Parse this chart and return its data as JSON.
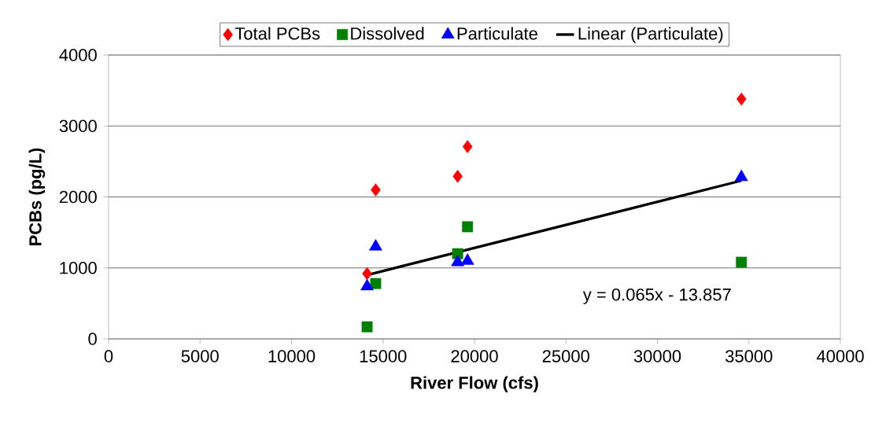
{
  "chart_data": {
    "type": "scatter",
    "xlabel": "River Flow (cfs)",
    "ylabel": "PCBs (pg/L)",
    "xlim": [
      0,
      40000
    ],
    "xticks": [
      0,
      5000,
      10000,
      15000,
      20000,
      25000,
      30000,
      35000,
      40000
    ],
    "ylim": [
      0,
      4000
    ],
    "yticks": [
      0,
      1000,
      2000,
      3000,
      4000
    ],
    "grid": "y",
    "legend": "top",
    "x": [
      14130,
      14600,
      19080,
      19620,
      34590
    ],
    "series": [
      {
        "name": "Total PCBs",
        "color": "#ff0000",
        "marker": "diamond",
        "values": [
          920,
          2100,
          2290,
          2710,
          3380
        ]
      },
      {
        "name": "Dissolved",
        "color": "#008000",
        "marker": "square",
        "values": [
          170,
          780,
          1200,
          1580,
          1080
        ]
      },
      {
        "name": "Particulate",
        "color": "#0000ff",
        "marker": "triangle",
        "values": [
          740,
          1300,
          1080,
          1100,
          2280
        ]
      },
      {
        "name": "Linear (Particulate)",
        "type": "line",
        "color": "#000000",
        "marker": "none",
        "line_style": "solid",
        "x": [
          14130,
          34590
        ],
        "values": [
          900,
          2230
        ]
      }
    ],
    "annotations": [
      "y = 0.065x - 13.857"
    ]
  }
}
